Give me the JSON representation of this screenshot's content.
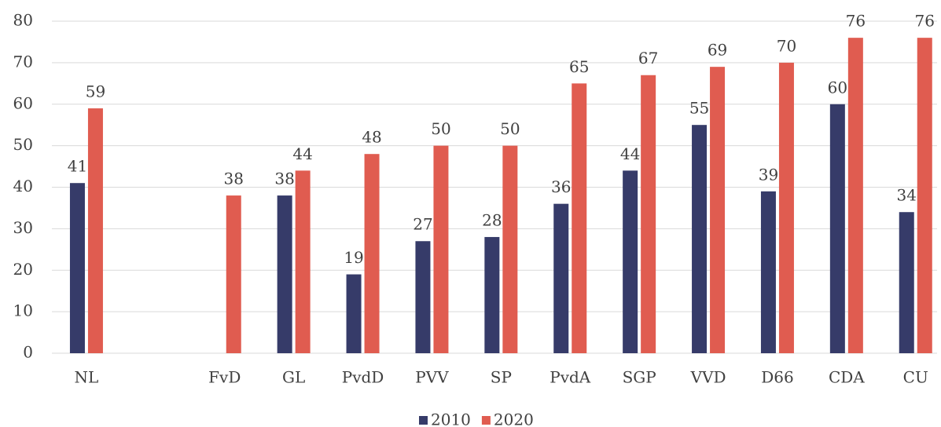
{
  "chart_data": {
    "type": "bar",
    "categories": [
      "NL",
      null,
      "FvD",
      "GL",
      "PvdD",
      "PVV",
      "SP",
      "PvdA",
      "SGP",
      "VVD",
      "D66",
      "CDA",
      "CU"
    ],
    "series": [
      {
        "name": "2010",
        "color": "#363b69",
        "values": [
          41,
          null,
          null,
          38,
          19,
          27,
          28,
          36,
          44,
          55,
          39,
          60,
          34
        ]
      },
      {
        "name": "2020",
        "color": "#e05c50",
        "values": [
          59,
          null,
          38,
          44,
          48,
          50,
          50,
          65,
          67,
          69,
          70,
          76,
          76
        ]
      }
    ],
    "ylim": [
      0,
      80
    ],
    "yticks": [
      0,
      10,
      20,
      30,
      40,
      50,
      60,
      70,
      80
    ],
    "grid": true,
    "data_labels": true,
    "legend": "bottom"
  }
}
